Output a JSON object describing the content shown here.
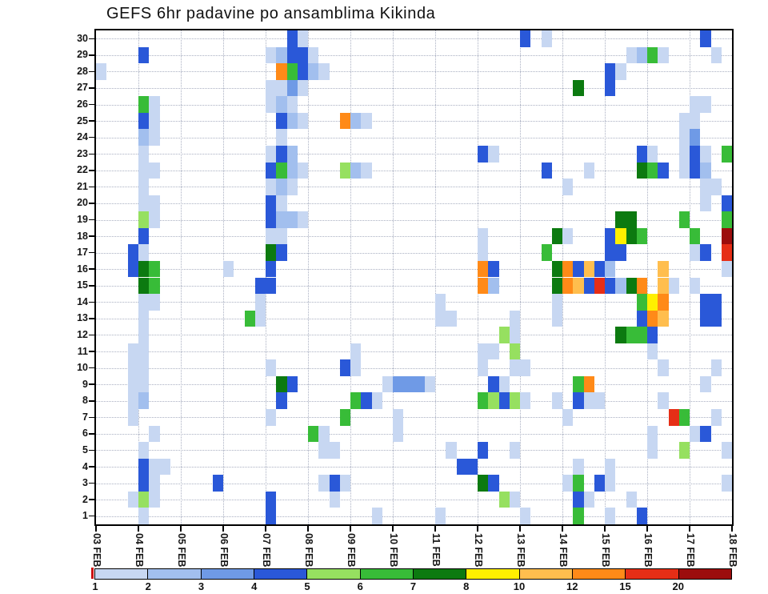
{
  "chart_data": {
    "type": "heatmap",
    "title": "GEFS 6hr padavine po ansamblima Kikinda",
    "step_hours": 6,
    "n_steps": 60,
    "n_members": 30,
    "x_ticks": [
      "03 FEB",
      "04 FEB",
      "05 FEB",
      "06 FEB",
      "07 FEB",
      "08 FEB",
      "09 FEB",
      "10 FEB",
      "11 FEB",
      "12 FEB",
      "13 FEB",
      "14 FEB",
      "15 FEB",
      "16 FEB",
      "17 FEB",
      "18 FEB"
    ],
    "y_ticks": [
      1,
      2,
      3,
      4,
      5,
      6,
      7,
      8,
      9,
      10,
      11,
      12,
      13,
      14,
      15,
      16,
      17,
      18,
      19,
      20,
      21,
      22,
      23,
      24,
      25,
      26,
      27,
      28,
      29,
      30
    ],
    "legend_values": [
      1,
      2,
      3,
      4,
      5,
      6,
      7,
      8,
      10,
      12,
      15,
      20
    ],
    "legend_colors": [
      "#c7d7f2",
      "#a2bfee",
      "#6f9ae6",
      "#2a58d8",
      "#96e060",
      "#38bc38",
      "#0c7a10",
      "#fff000",
      "#ffbe4e",
      "#ff8a18",
      "#e62e16",
      "#9c0d0d"
    ],
    "cells": [
      [
        30,
        18,
        4
      ],
      [
        30,
        19,
        1
      ],
      [
        30,
        40,
        4
      ],
      [
        30,
        42,
        1
      ],
      [
        30,
        57,
        4
      ],
      [
        29,
        4,
        4
      ],
      [
        29,
        16,
        1
      ],
      [
        29,
        17,
        2
      ],
      [
        29,
        18,
        4
      ],
      [
        29,
        19,
        4
      ],
      [
        29,
        20,
        1
      ],
      [
        29,
        50,
        1
      ],
      [
        29,
        51,
        2
      ],
      [
        29,
        52,
        6
      ],
      [
        29,
        53,
        1
      ],
      [
        29,
        58,
        1
      ],
      [
        28,
        0,
        1
      ],
      [
        28,
        17,
        12
      ],
      [
        28,
        18,
        6
      ],
      [
        28,
        19,
        4
      ],
      [
        28,
        20,
        2
      ],
      [
        28,
        21,
        1
      ],
      [
        28,
        48,
        4
      ],
      [
        28,
        49,
        1
      ],
      [
        27,
        16,
        1
      ],
      [
        27,
        17,
        1
      ],
      [
        27,
        18,
        3
      ],
      [
        27,
        19,
        1
      ],
      [
        27,
        45,
        7
      ],
      [
        27,
        48,
        4
      ],
      [
        26,
        4,
        6
      ],
      [
        26,
        5,
        1
      ],
      [
        26,
        16,
        1
      ],
      [
        26,
        17,
        2
      ],
      [
        26,
        18,
        1
      ],
      [
        26,
        56,
        1
      ],
      [
        26,
        57,
        1
      ],
      [
        25,
        4,
        4
      ],
      [
        25,
        5,
        1
      ],
      [
        25,
        17,
        4
      ],
      [
        25,
        18,
        2
      ],
      [
        25,
        19,
        1
      ],
      [
        25,
        23,
        12
      ],
      [
        25,
        24,
        2
      ],
      [
        25,
        25,
        1
      ],
      [
        25,
        55,
        1
      ],
      [
        25,
        56,
        1
      ],
      [
        24,
        4,
        2
      ],
      [
        24,
        5,
        1
      ],
      [
        24,
        17,
        1
      ],
      [
        24,
        55,
        1
      ],
      [
        24,
        56,
        3
      ],
      [
        23,
        4,
        1
      ],
      [
        23,
        16,
        1
      ],
      [
        23,
        17,
        4
      ],
      [
        23,
        18,
        2
      ],
      [
        23,
        36,
        4
      ],
      [
        23,
        37,
        1
      ],
      [
        23,
        51,
        4
      ],
      [
        23,
        52,
        1
      ],
      [
        23,
        55,
        1
      ],
      [
        23,
        56,
        4
      ],
      [
        23,
        57,
        1
      ],
      [
        23,
        59,
        6
      ],
      [
        22,
        4,
        1
      ],
      [
        22,
        5,
        1
      ],
      [
        22,
        16,
        4
      ],
      [
        22,
        17,
        6
      ],
      [
        22,
        18,
        2
      ],
      [
        22,
        19,
        1
      ],
      [
        22,
        23,
        5
      ],
      [
        22,
        24,
        2
      ],
      [
        22,
        25,
        1
      ],
      [
        22,
        42,
        4
      ],
      [
        22,
        46,
        1
      ],
      [
        22,
        51,
        7
      ],
      [
        22,
        52,
        6
      ],
      [
        22,
        53,
        4
      ],
      [
        22,
        55,
        1
      ],
      [
        22,
        56,
        4
      ],
      [
        22,
        57,
        2
      ],
      [
        21,
        4,
        1
      ],
      [
        21,
        16,
        1
      ],
      [
        21,
        17,
        2
      ],
      [
        21,
        18,
        1
      ],
      [
        21,
        44,
        1
      ],
      [
        21,
        57,
        1
      ],
      [
        21,
        58,
        1
      ],
      [
        20,
        4,
        1
      ],
      [
        20,
        5,
        1
      ],
      [
        20,
        16,
        4
      ],
      [
        20,
        17,
        1
      ],
      [
        20,
        57,
        1
      ],
      [
        20,
        59,
        4
      ],
      [
        19,
        4,
        5
      ],
      [
        19,
        5,
        1
      ],
      [
        19,
        16,
        4
      ],
      [
        19,
        17,
        2
      ],
      [
        19,
        18,
        2
      ],
      [
        19,
        19,
        1
      ],
      [
        19,
        49,
        7
      ],
      [
        19,
        50,
        7
      ],
      [
        19,
        55,
        6
      ],
      [
        19,
        59,
        6
      ],
      [
        18,
        4,
        4
      ],
      [
        18,
        16,
        1
      ],
      [
        18,
        17,
        1
      ],
      [
        18,
        36,
        1
      ],
      [
        18,
        43,
        7
      ],
      [
        18,
        44,
        1
      ],
      [
        18,
        48,
        4
      ],
      [
        18,
        49,
        8
      ],
      [
        18,
        50,
        7
      ],
      [
        18,
        51,
        6
      ],
      [
        18,
        56,
        6
      ],
      [
        18,
        59,
        20
      ],
      [
        17,
        3,
        4
      ],
      [
        17,
        4,
        1
      ],
      [
        17,
        16,
        7
      ],
      [
        17,
        17,
        4
      ],
      [
        17,
        36,
        1
      ],
      [
        17,
        42,
        6
      ],
      [
        17,
        48,
        4
      ],
      [
        17,
        49,
        4
      ],
      [
        17,
        56,
        1
      ],
      [
        17,
        57,
        4
      ],
      [
        17,
        59,
        15
      ],
      [
        16,
        3,
        4
      ],
      [
        16,
        4,
        7
      ],
      [
        16,
        5,
        6
      ],
      [
        16,
        12,
        1
      ],
      [
        16,
        16,
        4
      ],
      [
        16,
        36,
        12
      ],
      [
        16,
        37,
        4
      ],
      [
        16,
        43,
        7
      ],
      [
        16,
        44,
        12
      ],
      [
        16,
        45,
        4
      ],
      [
        16,
        46,
        10
      ],
      [
        16,
        47,
        4
      ],
      [
        16,
        48,
        2
      ],
      [
        16,
        53,
        10
      ],
      [
        16,
        59,
        1
      ],
      [
        15,
        4,
        7
      ],
      [
        15,
        5,
        6
      ],
      [
        15,
        15,
        4
      ],
      [
        15,
        16,
        4
      ],
      [
        15,
        36,
        12
      ],
      [
        15,
        37,
        2
      ],
      [
        15,
        43,
        7
      ],
      [
        15,
        44,
        12
      ],
      [
        15,
        45,
        10
      ],
      [
        15,
        46,
        4
      ],
      [
        15,
        47,
        15
      ],
      [
        15,
        48,
        4
      ],
      [
        15,
        49,
        2
      ],
      [
        15,
        50,
        7
      ],
      [
        15,
        51,
        12
      ],
      [
        15,
        53,
        10
      ],
      [
        15,
        54,
        1
      ],
      [
        15,
        56,
        1
      ],
      [
        14,
        4,
        1
      ],
      [
        14,
        5,
        1
      ],
      [
        14,
        15,
        1
      ],
      [
        14,
        32,
        1
      ],
      [
        14,
        43,
        1
      ],
      [
        14,
        51,
        6
      ],
      [
        14,
        52,
        8
      ],
      [
        14,
        53,
        12
      ],
      [
        14,
        57,
        4
      ],
      [
        14,
        58,
        4
      ],
      [
        13,
        4,
        1
      ],
      [
        13,
        14,
        6
      ],
      [
        13,
        15,
        1
      ],
      [
        13,
        32,
        1
      ],
      [
        13,
        33,
        1
      ],
      [
        13,
        39,
        1
      ],
      [
        13,
        43,
        1
      ],
      [
        13,
        51,
        4
      ],
      [
        13,
        52,
        12
      ],
      [
        13,
        53,
        10
      ],
      [
        13,
        57,
        4
      ],
      [
        13,
        58,
        4
      ],
      [
        12,
        4,
        1
      ],
      [
        12,
        38,
        5
      ],
      [
        12,
        39,
        1
      ],
      [
        12,
        49,
        7
      ],
      [
        12,
        50,
        6
      ],
      [
        12,
        51,
        6
      ],
      [
        12,
        52,
        4
      ],
      [
        11,
        3,
        1
      ],
      [
        11,
        4,
        1
      ],
      [
        11,
        24,
        1
      ],
      [
        11,
        36,
        1
      ],
      [
        11,
        37,
        1
      ],
      [
        11,
        39,
        5
      ],
      [
        11,
        52,
        1
      ],
      [
        10,
        3,
        1
      ],
      [
        10,
        4,
        1
      ],
      [
        10,
        16,
        1
      ],
      [
        10,
        23,
        4
      ],
      [
        10,
        24,
        1
      ],
      [
        10,
        36,
        1
      ],
      [
        10,
        39,
        1
      ],
      [
        10,
        40,
        1
      ],
      [
        10,
        53,
        1
      ],
      [
        10,
        58,
        1
      ],
      [
        9,
        3,
        1
      ],
      [
        9,
        4,
        1
      ],
      [
        9,
        17,
        7
      ],
      [
        9,
        18,
        4
      ],
      [
        9,
        27,
        1
      ],
      [
        9,
        28,
        3
      ],
      [
        9,
        29,
        3
      ],
      [
        9,
        30,
        3
      ],
      [
        9,
        31,
        1
      ],
      [
        9,
        37,
        4
      ],
      [
        9,
        38,
        1
      ],
      [
        9,
        45,
        6
      ],
      [
        9,
        46,
        12
      ],
      [
        9,
        57,
        1
      ],
      [
        8,
        3,
        1
      ],
      [
        8,
        4,
        2
      ],
      [
        8,
        17,
        4
      ],
      [
        8,
        24,
        6
      ],
      [
        8,
        25,
        4
      ],
      [
        8,
        26,
        1
      ],
      [
        8,
        36,
        6
      ],
      [
        8,
        37,
        5
      ],
      [
        8,
        38,
        4
      ],
      [
        8,
        39,
        5
      ],
      [
        8,
        40,
        1
      ],
      [
        8,
        43,
        1
      ],
      [
        8,
        45,
        4
      ],
      [
        8,
        46,
        1
      ],
      [
        8,
        47,
        1
      ],
      [
        8,
        53,
        1
      ],
      [
        7,
        3,
        1
      ],
      [
        7,
        16,
        1
      ],
      [
        7,
        23,
        6
      ],
      [
        7,
        28,
        1
      ],
      [
        7,
        44,
        1
      ],
      [
        7,
        54,
        15
      ],
      [
        7,
        55,
        6
      ],
      [
        7,
        58,
        1
      ],
      [
        6,
        5,
        1
      ],
      [
        6,
        20,
        6
      ],
      [
        6,
        21,
        1
      ],
      [
        6,
        28,
        1
      ],
      [
        6,
        52,
        1
      ],
      [
        6,
        56,
        1
      ],
      [
        6,
        57,
        4
      ],
      [
        5,
        4,
        1
      ],
      [
        5,
        21,
        1
      ],
      [
        5,
        22,
        1
      ],
      [
        5,
        33,
        1
      ],
      [
        5,
        36,
        4
      ],
      [
        5,
        39,
        1
      ],
      [
        5,
        52,
        1
      ],
      [
        5,
        55,
        5
      ],
      [
        5,
        59,
        1
      ],
      [
        4,
        4,
        4
      ],
      [
        4,
        5,
        1
      ],
      [
        4,
        6,
        1
      ],
      [
        4,
        34,
        4
      ],
      [
        4,
        35,
        4
      ],
      [
        4,
        45,
        1
      ],
      [
        4,
        48,
        1
      ],
      [
        3,
        4,
        4
      ],
      [
        3,
        5,
        1
      ],
      [
        3,
        11,
        4
      ],
      [
        3,
        21,
        1
      ],
      [
        3,
        22,
        4
      ],
      [
        3,
        23,
        1
      ],
      [
        3,
        36,
        7
      ],
      [
        3,
        37,
        4
      ],
      [
        3,
        44,
        1
      ],
      [
        3,
        45,
        6
      ],
      [
        3,
        47,
        4
      ],
      [
        3,
        48,
        1
      ],
      [
        3,
        59,
        1
      ],
      [
        2,
        3,
        1
      ],
      [
        2,
        4,
        5
      ],
      [
        2,
        5,
        1
      ],
      [
        2,
        16,
        4
      ],
      [
        2,
        22,
        1
      ],
      [
        2,
        38,
        5
      ],
      [
        2,
        39,
        1
      ],
      [
        2,
        45,
        4
      ],
      [
        2,
        46,
        1
      ],
      [
        2,
        50,
        1
      ],
      [
        1,
        4,
        1
      ],
      [
        1,
        16,
        4
      ],
      [
        1,
        26,
        1
      ],
      [
        1,
        32,
        1
      ],
      [
        1,
        40,
        1
      ],
      [
        1,
        45,
        6
      ],
      [
        1,
        48,
        1
      ],
      [
        1,
        51,
        4
      ]
    ]
  }
}
